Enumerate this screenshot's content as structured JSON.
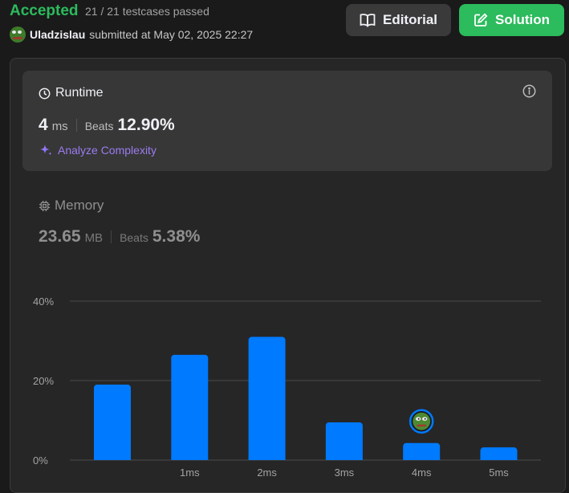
{
  "header": {
    "status": "Accepted",
    "testcases": "21 / 21 testcases passed",
    "username": "Uladzislau",
    "submitted": "submitted at May 02, 2025 22:27",
    "editorial_label": "Editorial",
    "solution_label": "Solution"
  },
  "runtime": {
    "title": "Runtime",
    "value": "4",
    "unit": "ms",
    "beats_label": "Beats",
    "beats_value": "12.90%",
    "analyze_label": "Analyze Complexity"
  },
  "memory": {
    "title": "Memory",
    "value": "23.65",
    "unit": "MB",
    "beats_label": "Beats",
    "beats_value": "5.38%"
  },
  "colors": {
    "accepted": "#2cbb5d",
    "bar": "#007aff",
    "grid": "#4a4a4a",
    "analyze": "#9b7cf0"
  },
  "chart_data": {
    "type": "bar",
    "x_tick_labels": [
      "",
      "1ms",
      "2ms",
      "3ms",
      "4ms",
      "5ms"
    ],
    "values": [
      19,
      26.5,
      31,
      9.5,
      4.3,
      3.2
    ],
    "y_ticks": [
      "0%",
      "20%",
      "40%"
    ],
    "ylim": [
      0,
      40
    ],
    "highlight_index": 4,
    "grid": true
  }
}
